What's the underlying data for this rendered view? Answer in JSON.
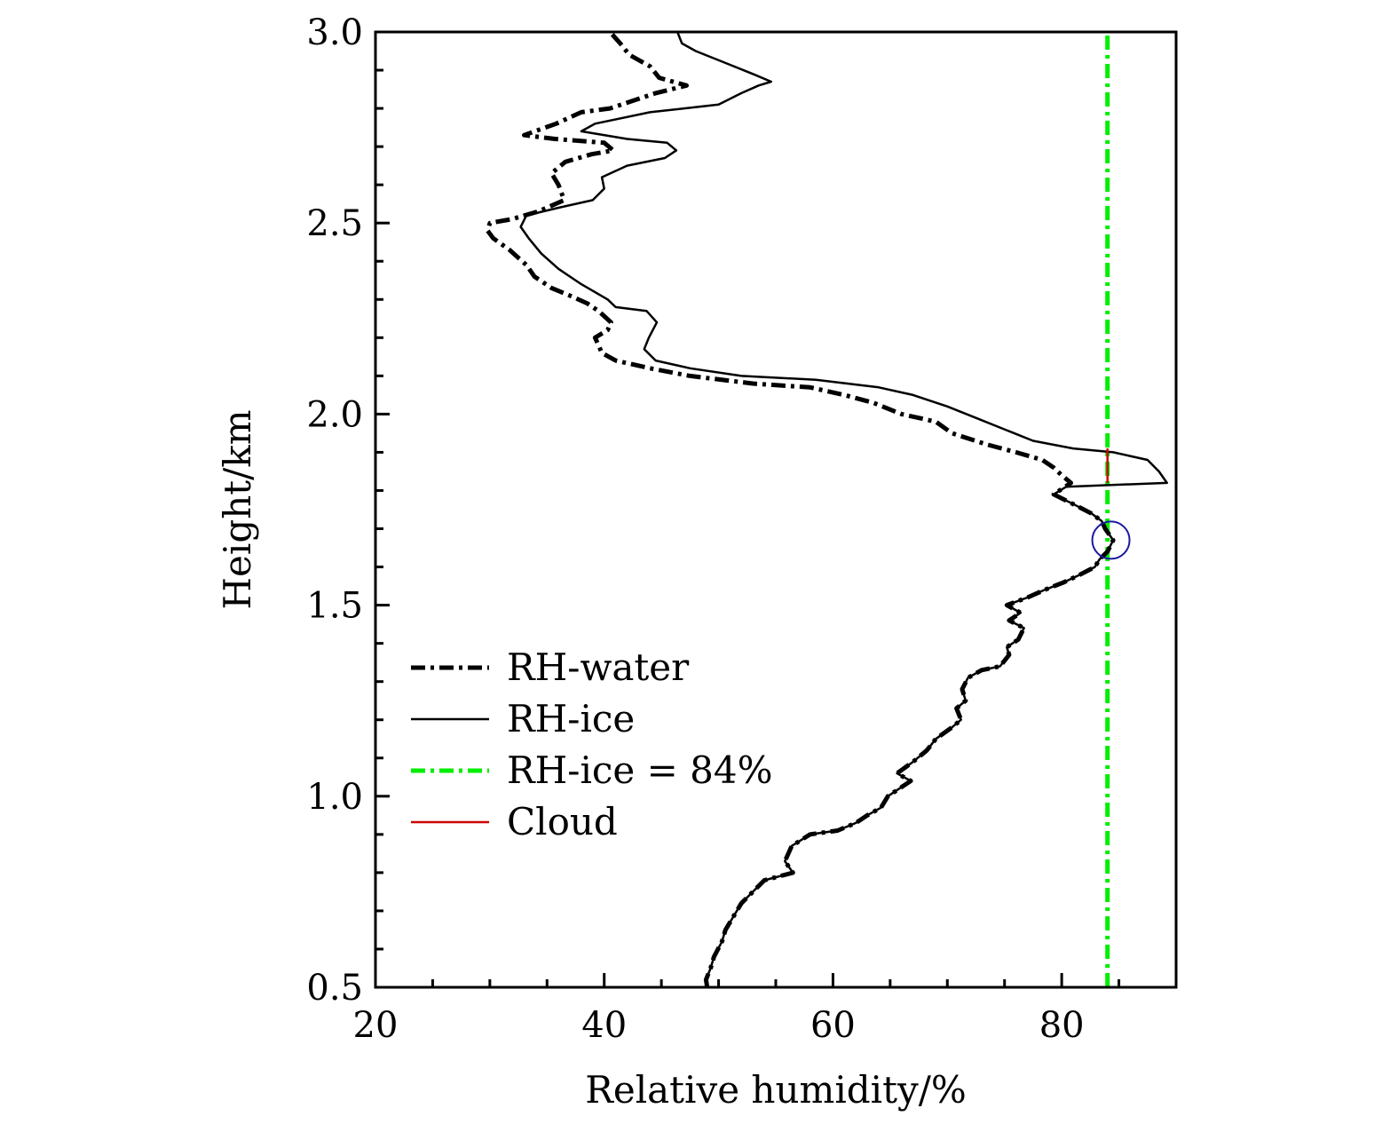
{
  "chart_data": {
    "type": "line",
    "xlabel": "Relative humidity/%",
    "ylabel": "Height/km",
    "xlim": [
      20,
      90
    ],
    "ylim": [
      0.5,
      3.0
    ],
    "x_ticks": [
      20,
      40,
      60,
      80
    ],
    "x_tick_labels": [
      "20",
      "40",
      "60",
      "80"
    ],
    "y_ticks": [
      0.5,
      1.0,
      1.5,
      2.0,
      2.5,
      3.0
    ],
    "y_tick_labels": [
      "0.5",
      "1.0",
      "1.5",
      "2.0",
      "2.5",
      "3.0"
    ],
    "grid": false,
    "legend_position": "lower-left",
    "series": [
      {
        "name": "RH-water",
        "style": "dash-dot-thick",
        "color": "#000000",
        "points": [
          [
            49.0,
            0.5
          ],
          [
            48.9,
            0.52
          ],
          [
            49.3,
            0.55
          ],
          [
            49.6,
            0.58
          ],
          [
            50.3,
            0.62
          ],
          [
            50.6,
            0.65
          ],
          [
            51.2,
            0.68
          ],
          [
            52.0,
            0.72
          ],
          [
            53.0,
            0.75
          ],
          [
            54.0,
            0.78
          ],
          [
            56.5,
            0.8
          ],
          [
            55.8,
            0.83
          ],
          [
            56.4,
            0.87
          ],
          [
            58.0,
            0.9
          ],
          [
            60.4,
            0.91
          ],
          [
            62.0,
            0.93
          ],
          [
            63.0,
            0.95
          ],
          [
            64.2,
            0.97
          ],
          [
            64.8,
            1.0
          ],
          [
            65.8,
            1.02
          ],
          [
            66.8,
            1.04
          ],
          [
            65.6,
            1.06
          ],
          [
            67.0,
            1.09
          ],
          [
            68.2,
            1.12
          ],
          [
            69.0,
            1.15
          ],
          [
            70.4,
            1.18
          ],
          [
            71.2,
            1.2
          ],
          [
            70.8,
            1.23
          ],
          [
            71.6,
            1.25
          ],
          [
            71.3,
            1.28
          ],
          [
            71.8,
            1.31
          ],
          [
            73.0,
            1.33
          ],
          [
            74.6,
            1.34
          ],
          [
            75.4,
            1.37
          ],
          [
            75.2,
            1.39
          ],
          [
            76.2,
            1.41
          ],
          [
            76.7,
            1.44
          ],
          [
            75.4,
            1.46
          ],
          [
            76.4,
            1.48
          ],
          [
            75.2,
            1.5
          ],
          [
            77.0,
            1.52
          ],
          [
            78.5,
            1.54
          ],
          [
            80.2,
            1.56
          ],
          [
            81.6,
            1.58
          ],
          [
            82.9,
            1.6
          ],
          [
            83.3,
            1.62
          ],
          [
            84.0,
            1.64
          ],
          [
            84.5,
            1.67
          ],
          [
            83.8,
            1.7
          ],
          [
            83.5,
            1.72
          ],
          [
            82.6,
            1.74
          ],
          [
            81.3,
            1.76
          ],
          [
            79.3,
            1.79
          ],
          [
            80.8,
            1.82
          ],
          [
            80.0,
            1.84
          ],
          [
            79.3,
            1.86
          ],
          [
            78.3,
            1.88
          ],
          [
            76.0,
            1.9
          ],
          [
            73.5,
            1.92
          ],
          [
            70.4,
            1.95
          ],
          [
            69.0,
            1.98
          ],
          [
            66.0,
            2.0
          ],
          [
            63.5,
            2.03
          ],
          [
            61.0,
            2.05
          ],
          [
            58.0,
            2.07
          ],
          [
            53.0,
            2.08
          ],
          [
            47.5,
            2.1
          ],
          [
            44.0,
            2.12
          ],
          [
            41.0,
            2.14
          ],
          [
            39.8,
            2.16
          ],
          [
            39.5,
            2.18
          ],
          [
            39.2,
            2.2
          ],
          [
            40.3,
            2.22
          ],
          [
            40.6,
            2.24
          ],
          [
            39.5,
            2.27
          ],
          [
            38.5,
            2.29
          ],
          [
            37.0,
            2.31
          ],
          [
            35.4,
            2.33
          ],
          [
            33.9,
            2.36
          ],
          [
            33.2,
            2.39
          ],
          [
            31.7,
            2.43
          ],
          [
            30.3,
            2.46
          ],
          [
            29.8,
            2.48
          ],
          [
            30.0,
            2.5
          ],
          [
            31.9,
            2.51
          ],
          [
            34.2,
            2.53
          ],
          [
            36.5,
            2.56
          ],
          [
            36.0,
            2.6
          ],
          [
            35.4,
            2.63
          ],
          [
            36.6,
            2.66
          ],
          [
            38.9,
            2.68
          ],
          [
            40.8,
            2.69
          ],
          [
            40.0,
            2.71
          ],
          [
            35.7,
            2.72
          ],
          [
            33.0,
            2.73
          ],
          [
            35.8,
            2.76
          ],
          [
            38.0,
            2.79
          ],
          [
            40.5,
            2.8
          ],
          [
            42.5,
            2.82
          ],
          [
            44.5,
            2.84
          ],
          [
            47.2,
            2.86
          ],
          [
            44.8,
            2.88
          ],
          [
            44.0,
            2.91
          ],
          [
            42.2,
            2.94
          ],
          [
            41.4,
            2.97
          ],
          [
            40.5,
            3.0
          ]
        ]
      },
      {
        "name": "RH-ice",
        "style": "solid-thin",
        "color": "#000000",
        "points": [
          [
            49.0,
            0.5
          ],
          [
            48.9,
            0.52
          ],
          [
            49.3,
            0.55
          ],
          [
            49.6,
            0.58
          ],
          [
            50.3,
            0.62
          ],
          [
            50.6,
            0.65
          ],
          [
            51.2,
            0.68
          ],
          [
            52.0,
            0.72
          ],
          [
            53.0,
            0.75
          ],
          [
            54.0,
            0.78
          ],
          [
            56.5,
            0.8
          ],
          [
            55.8,
            0.83
          ],
          [
            56.4,
            0.87
          ],
          [
            58.0,
            0.9
          ],
          [
            60.4,
            0.91
          ],
          [
            62.0,
            0.93
          ],
          [
            63.0,
            0.95
          ],
          [
            64.2,
            0.97
          ],
          [
            64.8,
            1.0
          ],
          [
            65.8,
            1.02
          ],
          [
            66.8,
            1.04
          ],
          [
            65.6,
            1.06
          ],
          [
            67.0,
            1.09
          ],
          [
            68.2,
            1.12
          ],
          [
            69.0,
            1.15
          ],
          [
            70.4,
            1.18
          ],
          [
            71.2,
            1.2
          ],
          [
            70.8,
            1.23
          ],
          [
            71.6,
            1.25
          ],
          [
            71.3,
            1.28
          ],
          [
            71.8,
            1.31
          ],
          [
            73.0,
            1.33
          ],
          [
            74.6,
            1.34
          ],
          [
            75.4,
            1.37
          ],
          [
            75.2,
            1.39
          ],
          [
            76.2,
            1.41
          ],
          [
            76.7,
            1.44
          ],
          [
            75.4,
            1.46
          ],
          [
            76.4,
            1.48
          ],
          [
            75.2,
            1.5
          ],
          [
            77.0,
            1.52
          ],
          [
            78.5,
            1.54
          ],
          [
            80.2,
            1.56
          ],
          [
            81.6,
            1.58
          ],
          [
            82.9,
            1.6
          ],
          [
            83.3,
            1.62
          ],
          [
            84.0,
            1.64
          ],
          [
            84.5,
            1.67
          ],
          [
            83.8,
            1.7
          ],
          [
            83.5,
            1.72
          ],
          [
            82.6,
            1.74
          ],
          [
            81.3,
            1.76
          ],
          [
            79.3,
            1.79
          ],
          [
            80.4,
            1.81
          ],
          [
            89.2,
            1.82
          ],
          [
            88.5,
            1.85
          ],
          [
            87.5,
            1.88
          ],
          [
            84.5,
            1.9
          ],
          [
            81.0,
            1.91
          ],
          [
            77.5,
            1.93
          ],
          [
            75.0,
            1.96
          ],
          [
            72.5,
            1.99
          ],
          [
            70.0,
            2.02
          ],
          [
            67.0,
            2.05
          ],
          [
            64.0,
            2.07
          ],
          [
            58.5,
            2.09
          ],
          [
            52.0,
            2.1
          ],
          [
            47.5,
            2.12
          ],
          [
            44.5,
            2.14
          ],
          [
            43.5,
            2.17
          ],
          [
            43.9,
            2.2
          ],
          [
            44.6,
            2.24
          ],
          [
            43.7,
            2.27
          ],
          [
            41.0,
            2.28
          ],
          [
            40.3,
            2.3
          ],
          [
            38.0,
            2.34
          ],
          [
            36.0,
            2.38
          ],
          [
            34.5,
            2.42
          ],
          [
            33.4,
            2.46
          ],
          [
            32.7,
            2.49
          ],
          [
            33.2,
            2.52
          ],
          [
            36.0,
            2.54
          ],
          [
            39.0,
            2.56
          ],
          [
            40.0,
            2.59
          ],
          [
            39.8,
            2.62
          ],
          [
            42.0,
            2.65
          ],
          [
            45.3,
            2.67
          ],
          [
            46.3,
            2.69
          ],
          [
            45.5,
            2.71
          ],
          [
            42.0,
            2.72
          ],
          [
            38.0,
            2.74
          ],
          [
            39.2,
            2.76
          ],
          [
            44.0,
            2.79
          ],
          [
            50.0,
            2.81
          ],
          [
            52.0,
            2.84
          ],
          [
            53.5,
            2.86
          ],
          [
            54.6,
            2.87
          ],
          [
            53.0,
            2.89
          ],
          [
            50.5,
            2.92
          ],
          [
            48.0,
            2.95
          ],
          [
            46.8,
            2.97
          ],
          [
            46.4,
            3.0
          ]
        ]
      },
      {
        "name": "RH-ice = 84%",
        "style": "dash-dot-thick",
        "color": "#00ee00",
        "points": [
          [
            84.0,
            0.5
          ],
          [
            84.0,
            3.0
          ]
        ]
      },
      {
        "name": "Cloud",
        "style": "solid-thin",
        "color": "#cc0000",
        "points": [
          [
            84.0,
            1.82
          ],
          [
            84.0,
            1.91
          ]
        ]
      }
    ],
    "marker_circle": {
      "x": 84.3,
      "y": 1.67,
      "color": "#1a1aa0"
    }
  }
}
